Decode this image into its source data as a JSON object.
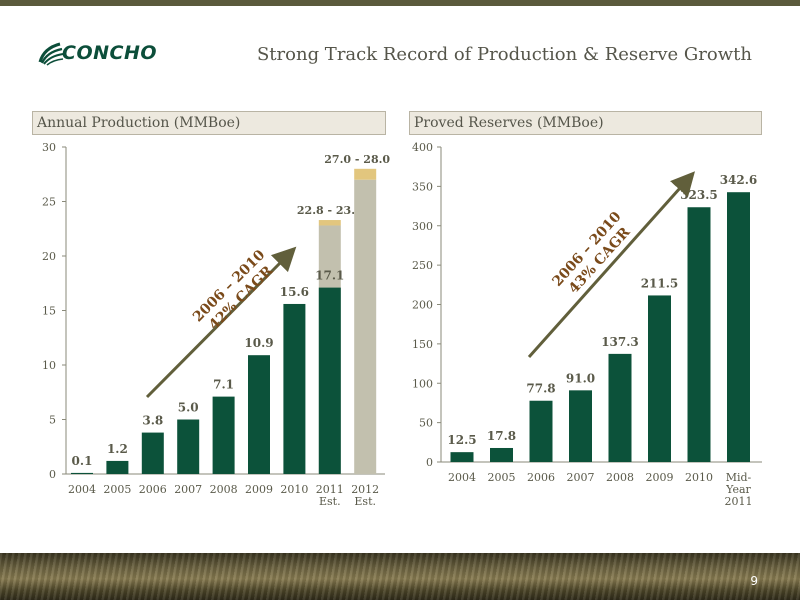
{
  "header": {
    "logo_text": "CONCHO",
    "title": "Strong Track Record of Production & Reserve Growth"
  },
  "page_number": "9",
  "colors": {
    "bar": "#0c523a",
    "estimate_gray": "#c2c0ae",
    "estimate_tan": "#e2c67e",
    "arrow": "#615f3b"
  },
  "chart_data": [
    {
      "type": "bar",
      "title": "Annual Production (MMBoe)",
      "ylim": [
        0,
        30
      ],
      "yticks": [
        0,
        5,
        10,
        15,
        20,
        25,
        30
      ],
      "categories": [
        "2004",
        "2005",
        "2006",
        "2007",
        "2008",
        "2009",
        "2010",
        "2011",
        "2012"
      ],
      "category_sublabels": [
        "",
        "",
        "",
        "",
        "",
        "",
        "",
        "Est.",
        "Est."
      ],
      "values": [
        0.1,
        1.2,
        3.8,
        5.0,
        7.1,
        10.9,
        15.6,
        17.1,
        null
      ],
      "value_labels": [
        "0.1",
        "1.2",
        "3.8",
        "5.0",
        "7.1",
        "10.9",
        "15.6",
        "17.1",
        ""
      ],
      "estimates": [
        {
          "category": "2011",
          "gray_top": 22.8,
          "range": [
            22.8,
            23.3
          ],
          "label": "22.8 - 23.3"
        },
        {
          "category": "2012",
          "gray_top": 27.0,
          "range": [
            27.0,
            28.0
          ],
          "label": "27.0 - 28.0"
        }
      ],
      "annotation": {
        "line1": "2006 – 2010",
        "line2": "42% CAGR"
      }
    },
    {
      "type": "bar",
      "title": "Proved Reserves (MMBoe)",
      "ylim": [
        0,
        400
      ],
      "yticks": [
        0,
        50,
        100,
        150,
        200,
        250,
        300,
        350,
        400
      ],
      "categories": [
        "2004",
        "2005",
        "2006",
        "2007",
        "2008",
        "2009",
        "2010",
        "Mid-"
      ],
      "category_sublabels": [
        "",
        "",
        "",
        "",
        "",
        "",
        "",
        "Year"
      ],
      "category_sublabels2": [
        "",
        "",
        "",
        "",
        "",
        "",
        "",
        "2011"
      ],
      "values": [
        12.5,
        17.8,
        77.8,
        91.0,
        137.3,
        211.5,
        323.5,
        342.6
      ],
      "value_labels": [
        "12.5",
        "17.8",
        "77.8",
        "91.0",
        "137.3",
        "211.5",
        "323.5",
        "342.6"
      ],
      "annotation": {
        "line1": "2006 – 2010",
        "line2": "43% CAGR"
      }
    }
  ]
}
